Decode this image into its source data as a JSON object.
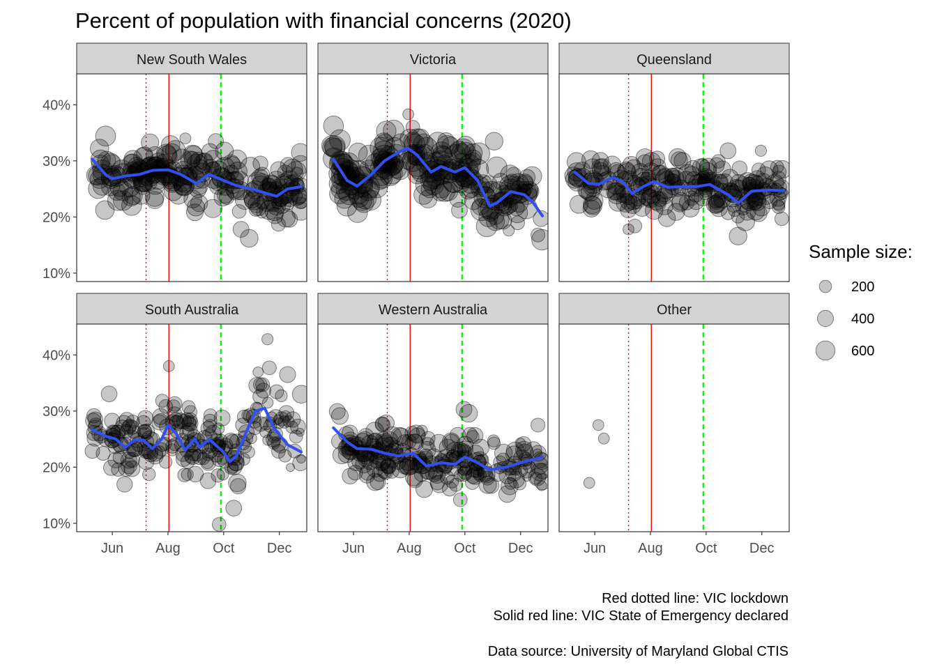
{
  "chart_data": {
    "type": "scatter",
    "title": "Percent of population with financial concerns (2020)",
    "xlabel": "",
    "ylabel": "",
    "x_ticks": [
      "Jun",
      "Aug",
      "Oct",
      "Dec"
    ],
    "x_tick_dates": [
      "2020-06-01",
      "2020-08-01",
      "2020-10-01",
      "2020-12-01"
    ],
    "xlim": [
      "2020-04-23",
      "2020-12-31"
    ],
    "y_ticks": [
      "10%",
      "20%",
      "30%",
      "40%"
    ],
    "y_tick_values": [
      10,
      20,
      30,
      40
    ],
    "ylim": [
      8.5,
      45.5
    ],
    "grid": false,
    "legend": {
      "title": "Sample size:",
      "position": "right",
      "sizes": [
        200,
        400,
        600
      ],
      "labels": [
        "200",
        "400",
        "600"
      ]
    },
    "reference_lines": [
      {
        "date": "2020-07-08",
        "style": "dotted",
        "color": "#ff0000"
      },
      {
        "date": "2020-08-02",
        "style": "solid",
        "color": "#ff0000"
      },
      {
        "date": "2020-09-28",
        "style": "dashed",
        "color": "#00ff00"
      }
    ],
    "colors": {
      "smooth": "#3050f0",
      "points": "#000000",
      "strip": "#d3d3d3"
    },
    "panels": [
      {
        "name": "New South Wales",
        "smooth": [
          [
            "2020-05-10",
            30.3
          ],
          [
            "2020-05-25",
            27.5
          ],
          [
            "2020-06-01",
            26.8
          ],
          [
            "2020-06-15",
            27.3
          ],
          [
            "2020-07-01",
            27.6
          ],
          [
            "2020-07-15",
            28.3
          ],
          [
            "2020-08-01",
            28.4
          ],
          [
            "2020-08-15",
            27.6
          ],
          [
            "2020-09-01",
            26.0
          ],
          [
            "2020-09-15",
            27.6
          ],
          [
            "2020-10-01",
            26.5
          ],
          [
            "2020-10-15",
            25.6
          ],
          [
            "2020-11-01",
            25.0
          ],
          [
            "2020-11-15",
            24.3
          ],
          [
            "2020-11-28",
            23.7
          ],
          [
            "2020-12-10",
            25.0
          ],
          [
            "2020-12-25",
            25.4
          ]
        ],
        "extra_points": [
          [
            "2020-08-20",
            34.0
          ],
          [
            "2020-10-18",
            21.0
          ],
          [
            "2020-10-20",
            17.8
          ],
          [
            "2020-10-29",
            16.2
          ],
          [
            "2020-11-12",
            20.8
          ],
          [
            "2020-11-30",
            18.7
          ],
          [
            "2020-12-12",
            19.6
          ],
          [
            "2020-12-24",
            31.5
          ],
          [
            "2020-12-25",
            22.5
          ]
        ]
      },
      {
        "name": "Victoria",
        "smooth": [
          [
            "2020-05-10",
            30.3
          ],
          [
            "2020-05-25",
            26.5
          ],
          [
            "2020-06-05",
            25.5
          ],
          [
            "2020-06-20",
            27.5
          ],
          [
            "2020-07-05",
            30.0
          ],
          [
            "2020-07-20",
            31.5
          ],
          [
            "2020-07-30",
            32.3
          ],
          [
            "2020-08-10",
            31.0
          ],
          [
            "2020-08-25",
            28.0
          ],
          [
            "2020-09-05",
            29.0
          ],
          [
            "2020-09-20",
            28.0
          ],
          [
            "2020-10-01",
            28.8
          ],
          [
            "2020-10-15",
            26.5
          ],
          [
            "2020-10-28",
            22.0
          ],
          [
            "2020-11-05",
            22.5
          ],
          [
            "2020-11-20",
            24.5
          ],
          [
            "2020-12-05",
            24.0
          ],
          [
            "2020-12-15",
            22.5
          ],
          [
            "2020-12-25",
            20.2
          ]
        ],
        "extra_points": [
          [
            "2020-07-31",
            38.3
          ],
          [
            "2020-08-05",
            36.0
          ],
          [
            "2020-09-25",
            21.2
          ],
          [
            "2020-11-02",
            33.5
          ],
          [
            "2020-11-18",
            17.6
          ],
          [
            "2020-12-20",
            16.8
          ]
        ]
      },
      {
        "name": "Queensland",
        "smooth": [
          [
            "2020-05-10",
            28.0
          ],
          [
            "2020-05-25",
            26.0
          ],
          [
            "2020-06-05",
            25.8
          ],
          [
            "2020-06-20",
            27.0
          ],
          [
            "2020-07-01",
            26.4
          ],
          [
            "2020-07-12",
            24.2
          ],
          [
            "2020-07-25",
            25.5
          ],
          [
            "2020-08-05",
            26.3
          ],
          [
            "2020-08-20",
            25.3
          ],
          [
            "2020-09-05",
            25.4
          ],
          [
            "2020-09-20",
            25.4
          ],
          [
            "2020-10-05",
            25.8
          ],
          [
            "2020-10-25",
            24.0
          ],
          [
            "2020-11-05",
            22.5
          ],
          [
            "2020-11-20",
            24.6
          ],
          [
            "2020-12-10",
            24.8
          ],
          [
            "2020-12-25",
            24.7
          ]
        ],
        "extra_points": [
          [
            "2020-07-08",
            17.8
          ],
          [
            "2020-07-15",
            18.4
          ],
          [
            "2020-10-25",
            31.8
          ],
          [
            "2020-11-05",
            16.6
          ],
          [
            "2020-11-30",
            31.8
          ],
          [
            "2020-12-20",
            28.0
          ]
        ]
      },
      {
        "name": "South Australia",
        "smooth": [
          [
            "2020-05-10",
            26.7
          ],
          [
            "2020-05-25",
            25.5
          ],
          [
            "2020-06-05",
            25.0
          ],
          [
            "2020-06-15",
            23.5
          ],
          [
            "2020-06-25",
            24.8
          ],
          [
            "2020-07-05",
            24.8
          ],
          [
            "2020-07-15",
            23.3
          ],
          [
            "2020-07-25",
            25.0
          ],
          [
            "2020-08-01",
            27.5
          ],
          [
            "2020-08-10",
            26.0
          ],
          [
            "2020-08-20",
            23.0
          ],
          [
            "2020-08-30",
            25.0
          ],
          [
            "2020-09-05",
            23.5
          ],
          [
            "2020-09-15",
            25.0
          ],
          [
            "2020-09-30",
            22.8
          ],
          [
            "2020-10-08",
            21.0
          ],
          [
            "2020-10-15",
            22.0
          ],
          [
            "2020-10-25",
            26.0
          ],
          [
            "2020-11-05",
            30.0
          ],
          [
            "2020-11-15",
            30.5
          ],
          [
            "2020-11-25",
            27.0
          ],
          [
            "2020-12-10",
            24.0
          ],
          [
            "2020-12-25",
            22.7
          ]
        ],
        "extra_points": [
          [
            "2020-08-02",
            38.0
          ],
          [
            "2020-09-26",
            9.8
          ],
          [
            "2020-10-12",
            12.7
          ],
          [
            "2020-10-16",
            17.2
          ],
          [
            "2020-11-18",
            42.8
          ],
          [
            "2020-11-20",
            37.7
          ],
          [
            "2020-12-10",
            36.5
          ],
          [
            "2020-12-25",
            33.0
          ]
        ]
      },
      {
        "name": "Western Australia",
        "smooth": [
          [
            "2020-05-10",
            27.0
          ],
          [
            "2020-05-25",
            24.5
          ],
          [
            "2020-06-05",
            23.3
          ],
          [
            "2020-06-20",
            23.2
          ],
          [
            "2020-07-05",
            22.5
          ],
          [
            "2020-07-20",
            22.0
          ],
          [
            "2020-08-05",
            22.5
          ],
          [
            "2020-08-20",
            20.2
          ],
          [
            "2020-09-05",
            20.8
          ],
          [
            "2020-09-20",
            20.5
          ],
          [
            "2020-10-01",
            21.8
          ],
          [
            "2020-10-15",
            20.8
          ],
          [
            "2020-10-28",
            19.5
          ],
          [
            "2020-11-15",
            20.0
          ],
          [
            "2020-12-01",
            20.8
          ],
          [
            "2020-12-25",
            21.8
          ]
        ],
        "extra_points": [
          [
            "2020-08-15",
            26.5
          ],
          [
            "2020-09-26",
            14.2
          ],
          [
            "2020-09-30",
            30.3
          ],
          [
            "2020-10-05",
            29.6
          ],
          [
            "2020-10-20",
            21.3
          ],
          [
            "2020-12-20",
            27.5
          ],
          [
            "2020-12-25",
            17.4
          ]
        ]
      },
      {
        "name": "Other",
        "smooth": [],
        "extra_points": [
          [
            "2020-05-26",
            17.2
          ],
          [
            "2020-06-05",
            27.5
          ],
          [
            "2020-06-11",
            25.1
          ]
        ]
      }
    ]
  },
  "caption": {
    "line1": "Red dotted line: VIC lockdown",
    "line2": "Solid red line: VIC State of Emergency declared",
    "line3": "Data source: University of Maryland Global CTIS"
  }
}
